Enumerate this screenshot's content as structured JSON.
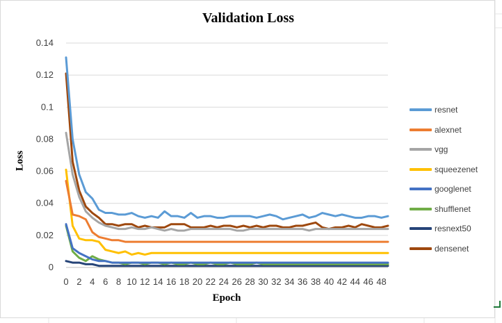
{
  "chart_data": {
    "type": "line",
    "title": "Validation Loss",
    "xlabel": "Epoch",
    "ylabel": "Loss",
    "xlim": [
      0,
      49
    ],
    "ylim": [
      0,
      0.14
    ],
    "y_ticks": [
      "0",
      "0.02",
      "0.04",
      "0.06",
      "0.08",
      "0.1",
      "0.12",
      "0.14"
    ],
    "x_ticks": [
      "0",
      "2",
      "4",
      "6",
      "8",
      "10",
      "12",
      "14",
      "16",
      "18",
      "20",
      "22",
      "24",
      "26",
      "28",
      "30",
      "32",
      "34",
      "36",
      "38",
      "40",
      "42",
      "44",
      "46",
      "48"
    ],
    "grid": "horizontal",
    "legend_position": "right",
    "series": [
      {
        "name": "resnet",
        "color": "#5b9bd5",
        "values": [
          0.131,
          0.08,
          0.058,
          0.047,
          0.043,
          0.036,
          0.034,
          0.034,
          0.033,
          0.033,
          0.034,
          0.032,
          0.031,
          0.032,
          0.031,
          0.035,
          0.032,
          0.032,
          0.031,
          0.034,
          0.031,
          0.032,
          0.032,
          0.031,
          0.031,
          0.032,
          0.032,
          0.032,
          0.032,
          0.031,
          0.032,
          0.033,
          0.032,
          0.03,
          0.031,
          0.032,
          0.033,
          0.031,
          0.032,
          0.034,
          0.033,
          0.032,
          0.033,
          0.032,
          0.031,
          0.031,
          0.032,
          0.032,
          0.031,
          0.032
        ]
      },
      {
        "name": "alexnet",
        "color": "#ed7d31",
        "values": [
          0.054,
          0.033,
          0.032,
          0.03,
          0.022,
          0.019,
          0.018,
          0.017,
          0.017,
          0.016,
          0.016,
          0.016,
          0.016,
          0.016,
          0.016,
          0.016,
          0.016,
          0.016,
          0.016,
          0.016,
          0.016,
          0.016,
          0.016,
          0.016,
          0.016,
          0.016,
          0.016,
          0.016,
          0.016,
          0.016,
          0.016,
          0.016,
          0.016,
          0.016,
          0.016,
          0.016,
          0.016,
          0.016,
          0.016,
          0.016,
          0.016,
          0.016,
          0.016,
          0.016,
          0.016,
          0.016,
          0.016,
          0.016,
          0.016,
          0.016
        ]
      },
      {
        "name": "vgg",
        "color": "#a5a5a5",
        "values": [
          0.084,
          0.058,
          0.044,
          0.035,
          0.031,
          0.028,
          0.026,
          0.025,
          0.024,
          0.024,
          0.025,
          0.024,
          0.024,
          0.025,
          0.024,
          0.023,
          0.024,
          0.023,
          0.023,
          0.024,
          0.024,
          0.024,
          0.024,
          0.024,
          0.024,
          0.024,
          0.023,
          0.023,
          0.024,
          0.024,
          0.024,
          0.024,
          0.024,
          0.024,
          0.024,
          0.024,
          0.024,
          0.023,
          0.024,
          0.024,
          0.024,
          0.024,
          0.024,
          0.024,
          0.024,
          0.024,
          0.024,
          0.024,
          0.024,
          0.024
        ]
      },
      {
        "name": "squeezenet",
        "color": "#ffc000",
        "values": [
          0.061,
          0.026,
          0.018,
          0.017,
          0.017,
          0.016,
          0.011,
          0.01,
          0.009,
          0.01,
          0.008,
          0.009,
          0.008,
          0.009,
          0.009,
          0.009,
          0.009,
          0.009,
          0.009,
          0.009,
          0.009,
          0.009,
          0.009,
          0.009,
          0.009,
          0.009,
          0.009,
          0.009,
          0.009,
          0.009,
          0.009,
          0.009,
          0.009,
          0.009,
          0.009,
          0.009,
          0.009,
          0.009,
          0.009,
          0.009,
          0.009,
          0.009,
          0.009,
          0.009,
          0.009,
          0.009,
          0.009,
          0.009,
          0.009,
          0.009
        ]
      },
      {
        "name": "googlenet",
        "color": "#4472c4",
        "values": [
          0.027,
          0.012,
          0.009,
          0.007,
          0.005,
          0.004,
          0.004,
          0.003,
          0.003,
          0.003,
          0.003,
          0.003,
          0.003,
          0.003,
          0.003,
          0.003,
          0.003,
          0.003,
          0.003,
          0.003,
          0.003,
          0.003,
          0.003,
          0.003,
          0.003,
          0.003,
          0.003,
          0.003,
          0.003,
          0.003,
          0.003,
          0.003,
          0.003,
          0.003,
          0.003,
          0.003,
          0.003,
          0.003,
          0.003,
          0.003,
          0.003,
          0.003,
          0.003,
          0.003,
          0.003,
          0.003,
          0.003,
          0.003,
          0.003,
          0.003
        ]
      },
      {
        "name": "shufflenet",
        "color": "#70ad47",
        "values": [
          0.026,
          0.01,
          0.006,
          0.004,
          0.007,
          0.005,
          0.004,
          0.003,
          0.003,
          0.002,
          0.003,
          0.003,
          0.002,
          0.003,
          0.003,
          0.002,
          0.003,
          0.002,
          0.002,
          0.003,
          0.002,
          0.002,
          0.003,
          0.002,
          0.002,
          0.003,
          0.002,
          0.002,
          0.002,
          0.003,
          0.002,
          0.002,
          0.002,
          0.002,
          0.002,
          0.002,
          0.002,
          0.002,
          0.002,
          0.002,
          0.002,
          0.002,
          0.002,
          0.002,
          0.002,
          0.002,
          0.002,
          0.002,
          0.002,
          0.002
        ]
      },
      {
        "name": "resnext50",
        "color": "#264478",
        "values": [
          0.004,
          0.003,
          0.003,
          0.002,
          0.002,
          0.001,
          0.001,
          0.001,
          0.001,
          0.001,
          0.001,
          0.001,
          0.001,
          0.001,
          0.001,
          0.001,
          0.001,
          0.001,
          0.001,
          0.001,
          0.001,
          0.001,
          0.001,
          0.001,
          0.001,
          0.001,
          0.001,
          0.001,
          0.001,
          0.001,
          0.001,
          0.001,
          0.001,
          0.001,
          0.001,
          0.001,
          0.001,
          0.001,
          0.001,
          0.001,
          0.001,
          0.001,
          0.001,
          0.001,
          0.001,
          0.001,
          0.001,
          0.001,
          0.001,
          0.001
        ]
      },
      {
        "name": "densenet",
        "color": "#9e480e",
        "values": [
          0.121,
          0.066,
          0.048,
          0.038,
          0.034,
          0.031,
          0.027,
          0.027,
          0.026,
          0.027,
          0.027,
          0.025,
          0.026,
          0.025,
          0.025,
          0.025,
          0.027,
          0.027,
          0.027,
          0.025,
          0.025,
          0.025,
          0.026,
          0.025,
          0.026,
          0.026,
          0.025,
          0.026,
          0.025,
          0.026,
          0.025,
          0.026,
          0.026,
          0.025,
          0.025,
          0.026,
          0.026,
          0.027,
          0.028,
          0.025,
          0.024,
          0.025,
          0.025,
          0.026,
          0.025,
          0.027,
          0.026,
          0.025,
          0.025,
          0.026
        ]
      }
    ]
  }
}
